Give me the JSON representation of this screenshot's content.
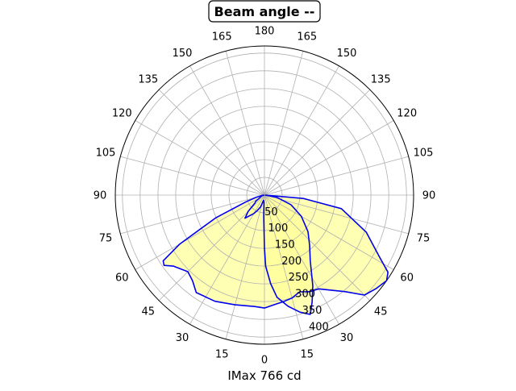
{
  "chart_data": {
    "type": "polar",
    "title": "Beam angle --",
    "xlabel": "IMax 766 cd",
    "angular_tick_labels": [
      "0",
      "15",
      "30",
      "45",
      "60",
      "75",
      "90",
      "105",
      "120",
      "135",
      "150",
      "165",
      "180",
      "165",
      "150",
      "135",
      "120",
      "105",
      "90",
      "75",
      "60",
      "45",
      "30",
      "15"
    ],
    "radial_ticks": [
      50,
      100,
      150,
      200,
      250,
      300,
      350,
      400
    ],
    "radial_tick_labels": [
      "50",
      "100",
      "150",
      "200",
      "250",
      "300",
      "350",
      "400"
    ],
    "rlim": [
      0,
      420
    ],
    "grid": true,
    "fill_color": "#ffff99",
    "line_color": "#0000ee",
    "series": [
      {
        "values_deg_cd": [
          [
            -90,
            0
          ],
          [
            -80,
            9
          ],
          [
            -75,
            25
          ],
          [
            -70,
            55
          ],
          [
            -65,
            150
          ],
          [
            -60,
            275
          ],
          [
            -57,
            340
          ],
          [
            -55,
            345
          ],
          [
            -52,
            325
          ],
          [
            -45,
            305
          ],
          [
            -40,
            315
          ],
          [
            -35,
            335
          ],
          [
            -25,
            330
          ],
          [
            -15,
            320
          ],
          [
            -5,
            315
          ],
          [
            0,
            318
          ],
          [
            5,
            310
          ],
          [
            10,
            305
          ],
          [
            15,
            300
          ],
          [
            20,
            290
          ],
          [
            25,
            300
          ],
          [
            30,
            305
          ],
          [
            40,
            355
          ],
          [
            45,
            398
          ],
          [
            50,
            410
          ],
          [
            55,
            420
          ],
          [
            58,
            410
          ],
          [
            62,
            365
          ],
          [
            70,
            305
          ],
          [
            80,
            220
          ],
          [
            85,
            110
          ],
          [
            90,
            2
          ]
        ]
      },
      {
        "values_deg_cd": [
          [
            -90,
            0
          ],
          [
            -80,
            6
          ],
          [
            -70,
            10
          ],
          [
            -60,
            15
          ],
          [
            -55,
            30
          ],
          [
            -50,
            35
          ],
          [
            -45,
            65
          ],
          [
            -40,
            85
          ],
          [
            -36,
            72
          ],
          [
            -30,
            60
          ],
          [
            -25,
            48
          ],
          [
            -18,
            35
          ],
          [
            -10,
            15
          ],
          [
            -4,
            20
          ],
          [
            -2,
            60
          ],
          [
            0,
            150
          ],
          [
            1,
            200
          ],
          [
            4,
            250
          ],
          [
            7,
            290
          ],
          [
            12,
            320
          ],
          [
            17,
            345
          ],
          [
            21,
            360
          ],
          [
            24,
            330
          ],
          [
            28,
            290
          ],
          [
            35,
            225
          ],
          [
            42,
            190
          ],
          [
            50,
            160
          ],
          [
            60,
            120
          ],
          [
            70,
            80
          ],
          [
            80,
            35
          ],
          [
            90,
            2
          ]
        ]
      }
    ]
  }
}
